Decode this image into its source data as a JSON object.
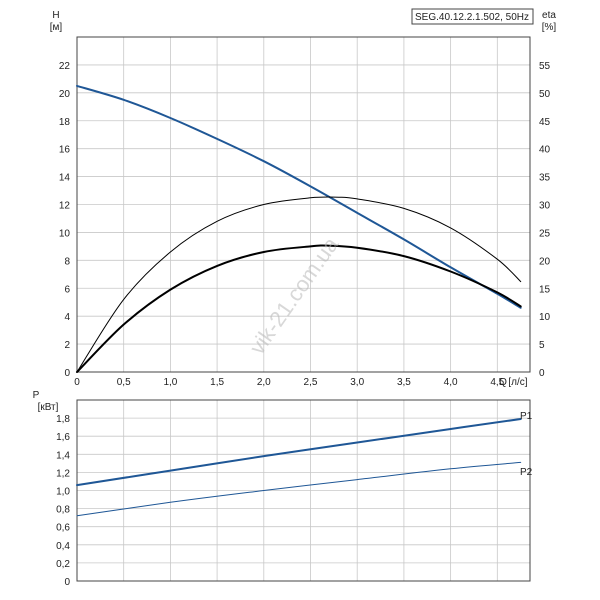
{
  "model_label": "SEG.40.12.2.1.502, 50Hz",
  "watermark": "vik-21.com.ua",
  "colors": {
    "blue": "#1f5796",
    "black": "#000000"
  },
  "chart_data": [
    {
      "type": "line",
      "ylabel": "H",
      "yunit": "[м]",
      "y2label": "eta",
      "y2unit": "[%]",
      "xlabel": "Q",
      "xunit": "[л/с]",
      "xlim": [
        0,
        4.85
      ],
      "ylim": [
        0,
        24
      ],
      "y2lim": [
        0,
        60
      ],
      "xticks": [
        "0",
        "0,5",
        "1,0",
        "1,5",
        "2,0",
        "2,5",
        "3,0",
        "3,5",
        "4,0",
        "4,5"
      ],
      "yticks": [
        "0",
        "2",
        "4",
        "6",
        "8",
        "10",
        "12",
        "14",
        "16",
        "18",
        "20",
        "22"
      ],
      "y2ticks": [
        "0",
        "5",
        "10",
        "15",
        "20",
        "25",
        "30",
        "35",
        "40",
        "45",
        "50",
        "55"
      ],
      "series": [
        {
          "axis": "left",
          "color": "#1f5796",
          "width": 2,
          "x": [
            0,
            0.5,
            1.0,
            1.5,
            2.0,
            2.5,
            3.0,
            3.5,
            4.0,
            4.5,
            4.75
          ],
          "y": [
            20.5,
            19.5,
            18.2,
            16.7,
            15.1,
            13.3,
            11.4,
            9.5,
            7.5,
            5.6,
            4.6
          ]
        },
        {
          "axis": "right",
          "color": "#000000",
          "width": 1,
          "x": [
            0,
            0.5,
            1.0,
            1.5,
            2.0,
            2.5,
            2.8,
            3.0,
            3.5,
            4.0,
            4.5,
            4.75
          ],
          "y": [
            0,
            13,
            21.5,
            27,
            30,
            31.2,
            31.3,
            31.0,
            29.3,
            25.8,
            20.2,
            16.2
          ]
        },
        {
          "axis": "left",
          "color": "#000000",
          "width": 2,
          "x": [
            0,
            0.5,
            1.0,
            1.5,
            2.0,
            2.5,
            2.7,
            3.0,
            3.5,
            4.0,
            4.5,
            4.75
          ],
          "y": [
            0,
            3.4,
            5.9,
            7.6,
            8.6,
            9.0,
            9.05,
            8.9,
            8.3,
            7.2,
            5.7,
            4.7
          ]
        }
      ]
    },
    {
      "type": "line",
      "ylabel": "P",
      "yunit": "[кВт]",
      "xlim": [
        0,
        4.85
      ],
      "ylim": [
        0,
        2.0
      ],
      "yticks": [
        "0",
        "0,2",
        "0,4",
        "0,6",
        "0,8",
        "1,0",
        "1,2",
        "1,4",
        "1,6",
        "1,8"
      ],
      "series": [
        {
          "name": "P1",
          "color": "#1f5796",
          "width": 2,
          "x": [
            0,
            1.0,
            2.0,
            3.0,
            4.0,
            4.75
          ],
          "y": [
            1.06,
            1.22,
            1.38,
            1.53,
            1.68,
            1.79
          ]
        },
        {
          "name": "P2",
          "color": "#1f5796",
          "width": 1,
          "x": [
            0,
            1.0,
            2.0,
            3.0,
            4.0,
            4.75
          ],
          "y": [
            0.72,
            0.87,
            1.0,
            1.12,
            1.24,
            1.31
          ]
        }
      ]
    }
  ]
}
